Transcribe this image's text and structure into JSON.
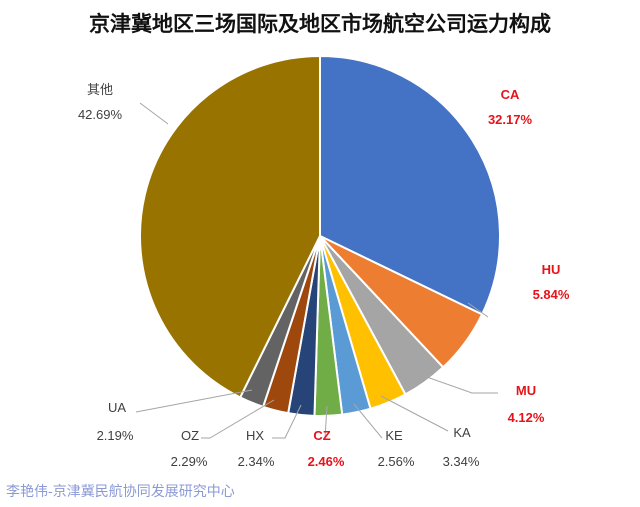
{
  "chart_data": {
    "type": "pie",
    "title": "京津冀地区三场国际及地区市场航空公司运力构成",
    "slices": [
      {
        "name": "CA",
        "value": 32.17,
        "label": "32.17%",
        "color": "#4472c4",
        "highlight": true
      },
      {
        "name": "HU",
        "value": 5.84,
        "label": "5.84%",
        "color": "#ed7d31",
        "highlight": true
      },
      {
        "name": "MU",
        "value": 4.12,
        "label": "4.12%",
        "color": "#a5a5a5",
        "highlight": true
      },
      {
        "name": "KA",
        "value": 3.34,
        "label": "3.34%",
        "color": "#ffc000",
        "highlight": false
      },
      {
        "name": "KE",
        "value": 2.56,
        "label": "2.56%",
        "color": "#5b9bd5",
        "highlight": false
      },
      {
        "name": "CZ",
        "value": 2.46,
        "label": "2.46%",
        "color": "#70ad47",
        "highlight": true
      },
      {
        "name": "HX",
        "value": 2.34,
        "label": "2.34%",
        "color": "#264478",
        "highlight": false
      },
      {
        "name": "OZ",
        "value": 2.29,
        "label": "2.29%",
        "color": "#9e480e",
        "highlight": false
      },
      {
        "name": "UA",
        "value": 2.19,
        "label": "2.19%",
        "color": "#636363",
        "highlight": false
      },
      {
        "name": "其他",
        "value": 42.69,
        "label": "42.69%",
        "color": "#997300",
        "highlight": false
      }
    ]
  },
  "watermark": "李艳伟-京津冀民航协同发展研究中心"
}
